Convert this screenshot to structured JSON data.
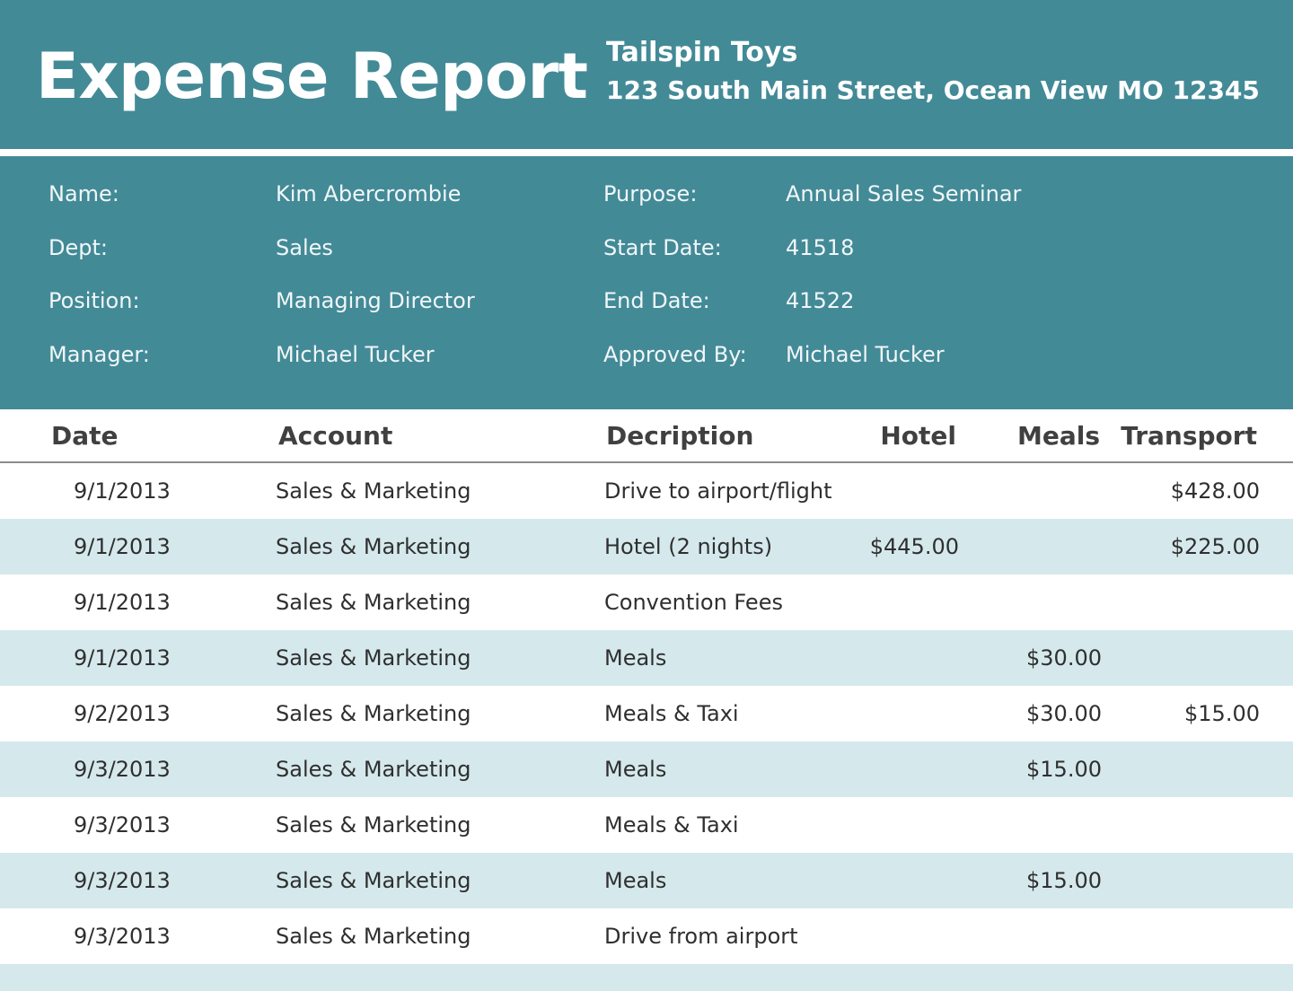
{
  "header": {
    "title": "Expense Report",
    "company_name": "Tailspin Toys",
    "company_address": "123 South Main Street, Ocean View MO 12345"
  },
  "colors": {
    "band": "#438A97",
    "alt_row": "#D5E9ED",
    "header_text": "#FFFFFF"
  },
  "info": {
    "rows": [
      {
        "left_label": "Name:",
        "left_value": "Kim Abercrombie",
        "right_label": "Purpose:",
        "right_value": "Annual Sales Seminar"
      },
      {
        "left_label": "Dept:",
        "left_value": "Sales",
        "right_label": "Start Date:",
        "right_value": "41518"
      },
      {
        "left_label": "Position:",
        "left_value": "Managing Director",
        "right_label": "End Date:",
        "right_value": "41522"
      },
      {
        "left_label": "Manager:",
        "left_value": "Michael Tucker",
        "right_label": "Approved By:",
        "right_value": "Michael Tucker"
      }
    ]
  },
  "table": {
    "columns": {
      "date": "Date",
      "account": "Account",
      "description": "Decription",
      "hotel": "Hotel",
      "meals": "Meals",
      "transport": "Transport"
    },
    "rows": [
      {
        "date": "9/1/2013",
        "account": "Sales & Marketing",
        "description": "Drive to airport/flight",
        "hotel": "",
        "meals": "",
        "transport": "$428.00"
      },
      {
        "date": "9/1/2013",
        "account": "Sales & Marketing",
        "description": "Hotel (2 nights)",
        "hotel": "$445.00",
        "meals": "",
        "transport": "$225.00"
      },
      {
        "date": "9/1/2013",
        "account": "Sales & Marketing",
        "description": "Convention Fees",
        "hotel": "",
        "meals": "",
        "transport": ""
      },
      {
        "date": "9/1/2013",
        "account": "Sales & Marketing",
        "description": "Meals",
        "hotel": "",
        "meals": "$30.00",
        "transport": ""
      },
      {
        "date": "9/2/2013",
        "account": "Sales & Marketing",
        "description": "Meals & Taxi",
        "hotel": "",
        "meals": "$30.00",
        "transport": "$15.00"
      },
      {
        "date": "9/3/2013",
        "account": "Sales & Marketing",
        "description": "Meals",
        "hotel": "",
        "meals": "$15.00",
        "transport": ""
      },
      {
        "date": "9/3/2013",
        "account": "Sales & Marketing",
        "description": "Meals & Taxi",
        "hotel": "",
        "meals": "",
        "transport": ""
      },
      {
        "date": "9/3/2013",
        "account": "Sales & Marketing",
        "description": "Meals",
        "hotel": "",
        "meals": "$15.00",
        "transport": ""
      },
      {
        "date": "9/3/2013",
        "account": "Sales & Marketing",
        "description": "Drive from airport",
        "hotel": "",
        "meals": "",
        "transport": ""
      },
      {
        "date": "",
        "account": "",
        "description": "",
        "hotel": "",
        "meals": "",
        "transport": ""
      }
    ]
  }
}
